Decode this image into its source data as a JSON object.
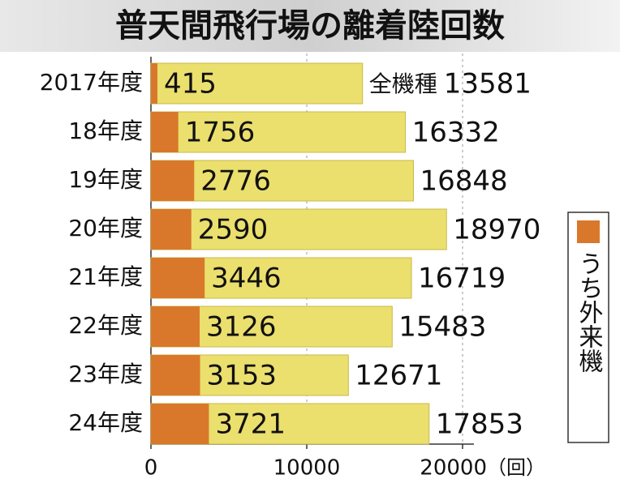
{
  "chart_data": {
    "type": "bar",
    "orientation": "horizontal",
    "title": "普天間飛行場の離着陸回数",
    "categories": [
      "2017年度",
      "18年度",
      "19年度",
      "20年度",
      "21年度",
      "22年度",
      "23年度",
      "24年度"
    ],
    "series": [
      {
        "name": "全機種",
        "color": "#ebdf6e",
        "values": [
          13581,
          16332,
          16848,
          18970,
          16719,
          15483,
          12671,
          17853
        ]
      },
      {
        "name": "うち外来機",
        "color": "#d9782a",
        "values": [
          415,
          1756,
          2776,
          2590,
          3446,
          3126,
          3153,
          3721
        ]
      }
    ],
    "xlim": [
      0,
      20000
    ],
    "xticks": [
      0,
      10000,
      20000
    ],
    "x_unit": "（回）",
    "grid": true
  }
}
